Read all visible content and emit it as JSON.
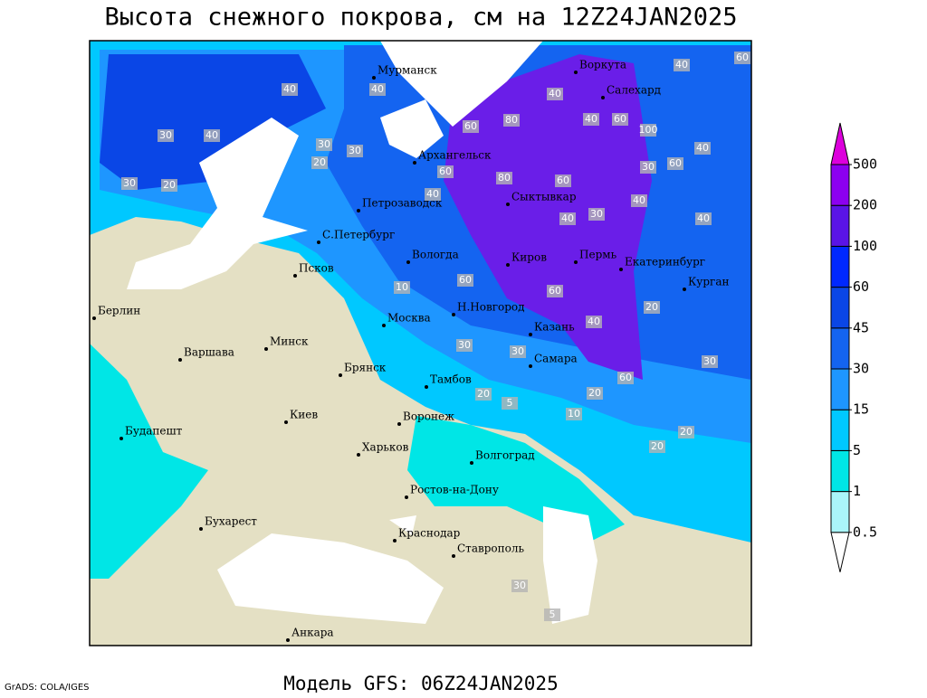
{
  "title": "Высота снежного покрова, см на 12Z24JAN2025",
  "footer": {
    "model": "Модель GFS: 06Z24JAN2025",
    "credit": "GrADS: COLA/IGES"
  },
  "map": {
    "land_color": "#e4e0c4",
    "sea_color": "#ffffff",
    "cities": [
      "Мурманск",
      "Архангельск",
      "Петрозаводск",
      "Сыктывкар",
      "С.Петербург",
      "Воркута",
      "Салехард",
      "Псков",
      "Вологда",
      "Киров",
      "Пермь",
      "Екатеринбург",
      "Курган",
      "Берлин",
      "Н.Новгород",
      "Москва",
      "Казань",
      "Минск",
      "Варшава",
      "Брянск",
      "Тамбов",
      "Самара",
      "Киев",
      "Воронеж",
      "Будапешт",
      "Харьков",
      "Волгоград",
      "Ростов-на-Дону",
      "Бухарест",
      "Краснодар",
      "Ставрополь",
      "Анкара"
    ],
    "contour_labels": [
      40,
      40,
      30,
      40,
      30,
      20,
      30,
      30,
      20,
      60,
      80,
      100,
      60,
      40,
      40,
      60,
      40,
      60,
      30,
      40,
      80,
      60,
      60,
      40,
      40,
      40,
      40,
      30,
      60,
      10,
      60,
      20,
      40,
      30,
      30,
      30,
      60,
      20,
      20,
      10,
      5,
      20,
      20,
      30,
      5
    ]
  },
  "legend": {
    "levels": [
      0.5,
      1,
      5,
      15,
      30,
      45,
      60,
      100,
      200,
      500
    ],
    "colors": [
      "#ffffff",
      "#aaf5fa",
      "#00e6e6",
      "#00c8ff",
      "#1e96ff",
      "#1464f0",
      "#0a46e6",
      "#0028ff",
      "#5a14e6",
      "#8c00f0",
      "#dc00dc"
    ]
  }
}
